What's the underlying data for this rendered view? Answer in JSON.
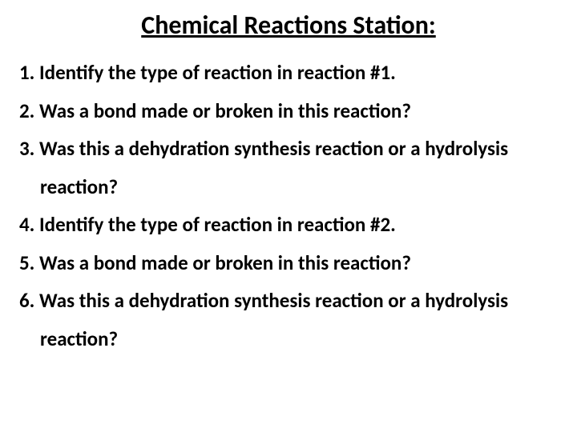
{
  "title": "Chemical Reactions Station:",
  "questions": [
    "Identify the type of reaction in reaction #1.",
    "Was a bond made or broken in this reaction?",
    "Was this a dehydration synthesis reaction or a hydrolysis reaction?",
    "Identify the type of reaction in reaction #2.",
    "Was a bond made or broken in this reaction?",
    "Was this a dehydration synthesis reaction or a hydrolysis reaction?"
  ],
  "styling": {
    "background_color": "#ffffff",
    "text_color": "#000000",
    "title_fontsize": 32,
    "title_fontweight": 700,
    "title_underline": true,
    "title_align": "center",
    "body_fontsize": 25,
    "body_fontweight": 700,
    "line_height": 1.9,
    "font_family": "Calibri"
  }
}
